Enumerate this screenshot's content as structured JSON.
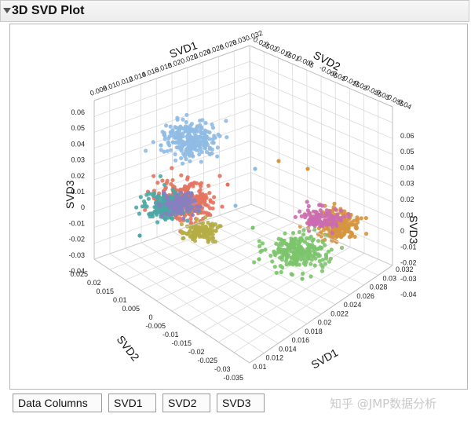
{
  "window": {
    "title": "3D SVD Plot"
  },
  "axes": {
    "svd1_top_label": "SVD1",
    "svd2_top_label": "SVD2",
    "svd3_left_label": "SVD3",
    "svd3_right_label": "SVD3",
    "svd2_left_label": "SVD2",
    "svd1_bottom_label": "SVD1",
    "svd1_top_ticks": [
      "0.008",
      "0.01",
      "0.012",
      "0.014",
      "0.016",
      "0.018",
      "0.02",
      "0.022",
      "0.024",
      "0.026",
      "0.028",
      "0.03",
      "0.032"
    ],
    "svd2_top_ticks": [
      "0.025",
      "0.02",
      "0.015",
      "0.01",
      "0.005",
      "0",
      "-0.005",
      "-0.01",
      "-0.015",
      "-0.02",
      "-0.025",
      "-0.03",
      "-0.035",
      "-0.04"
    ],
    "svd3_left_ticks": [
      "0.06",
      "0.05",
      "0.04",
      "0.03",
      "0.02",
      "0.01",
      "0",
      "-0.01",
      "-0.02",
      "-0.03",
      "-0.04"
    ],
    "svd3_right_ticks": [
      "0.06",
      "0.05",
      "0.04",
      "0.03",
      "0.02",
      "0.01",
      "0",
      "-0.01",
      "-0.02",
      "-0.03",
      "-0.04"
    ],
    "svd2_left_ticks": [
      "0.025",
      "0.02",
      "0.015",
      "0.01",
      "0.005",
      "0",
      "-0.005",
      "-0.01",
      "-0.015",
      "-0.02",
      "-0.025",
      "-0.03",
      "-0.035"
    ],
    "svd1_bottom_ticks": [
      "0.032",
      "0.03",
      "0.028",
      "0.026",
      "0.024",
      "0.022",
      "0.02",
      "0.018",
      "0.016",
      "0.014",
      "0.012",
      "0.01"
    ]
  },
  "chart_data": {
    "type": "scatter",
    "title": "3D SVD Plot",
    "xlabel": "SVD1",
    "ylabel": "SVD2",
    "zlabel": "SVD3",
    "xlim": [
      0.008,
      0.032
    ],
    "ylim": [
      -0.04,
      0.025
    ],
    "zlim": [
      -0.04,
      0.06
    ],
    "grid": true,
    "series": [
      {
        "color": "#8fbbe3",
        "cx": 243,
        "cy": 178,
        "rx": 30,
        "ry": 22,
        "n": 260
      },
      {
        "color": "#e4735f",
        "cx": 238,
        "cy": 255,
        "rx": 34,
        "ry": 22,
        "n": 260
      },
      {
        "color": "#4ca7a4",
        "cx": 212,
        "cy": 262,
        "rx": 24,
        "ry": 17,
        "n": 200
      },
      {
        "color": "#8a7ec0",
        "cx": 226,
        "cy": 260,
        "rx": 22,
        "ry": 14,
        "n": 90
      },
      {
        "color": "#b5ad45",
        "cx": 256,
        "cy": 294,
        "rx": 20,
        "ry": 12,
        "n": 120
      },
      {
        "color": "#d6953f",
        "cx": 432,
        "cy": 287,
        "rx": 24,
        "ry": 16,
        "n": 200
      },
      {
        "color": "#cc6bb0",
        "cx": 408,
        "cy": 278,
        "rx": 24,
        "ry": 13,
        "n": 110
      },
      {
        "color": "#7cc46b",
        "cx": 380,
        "cy": 320,
        "rx": 34,
        "ry": 20,
        "n": 230
      }
    ]
  },
  "buttons": {
    "data_columns": "Data Columns",
    "svd1": "SVD1",
    "svd2": "SVD2",
    "svd3": "SVD3"
  },
  "watermark": "知乎 @JMP数据分析"
}
